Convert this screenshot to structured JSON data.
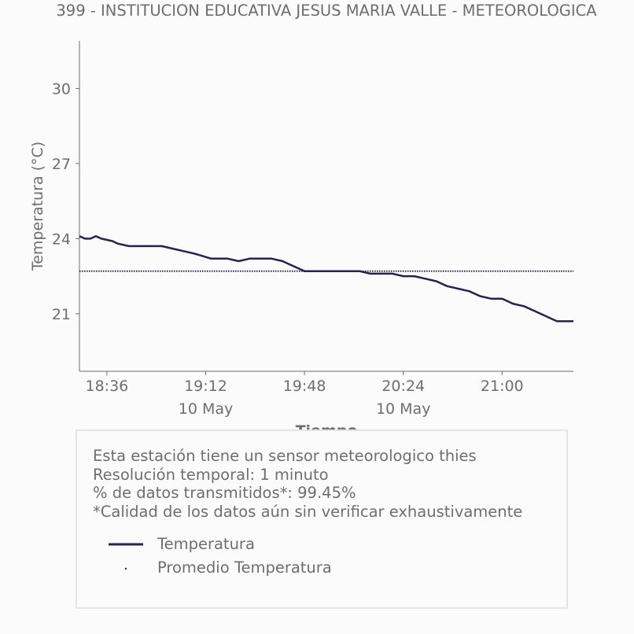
{
  "chart_data": {
    "type": "line",
    "title": "399 - INSTITUCION EDUCATIVA JESUS MARIA VALLE - METEOROLOGICA",
    "xlabel": "Tiempo",
    "ylabel": "Temperatura (°C)",
    "x_ticks": [
      "18:36",
      "19:12",
      "19:48",
      "20:24",
      "21:00"
    ],
    "x_date_labels": [
      "10 May",
      "10 May"
    ],
    "y_ticks": [
      21,
      24,
      27,
      30
    ],
    "ylim": [
      18.7,
      31.9
    ],
    "xlim": [
      "2023-05-10 18:26",
      "2023-05-10 21:26"
    ],
    "series": [
      {
        "name": "Temperatura",
        "color": "#23254a",
        "style": "solid",
        "x": [
          "18:26",
          "18:28",
          "18:30",
          "18:32",
          "18:34",
          "18:38",
          "18:40",
          "18:44",
          "18:50",
          "18:56",
          "19:00",
          "19:04",
          "19:08",
          "19:14",
          "19:20",
          "19:24",
          "19:28",
          "19:32",
          "19:36",
          "19:40",
          "19:44",
          "19:48",
          "19:52",
          "19:56",
          "20:00",
          "20:04",
          "20:08",
          "20:12",
          "20:16",
          "20:20",
          "20:24",
          "20:28",
          "20:32",
          "20:36",
          "20:40",
          "20:44",
          "20:48",
          "20:52",
          "20:56",
          "21:00",
          "21:04",
          "21:08",
          "21:12",
          "21:16",
          "21:18",
          "21:20",
          "21:24",
          "21:26"
        ],
        "y": [
          24.1,
          24.0,
          24.0,
          24.1,
          24.0,
          23.9,
          23.8,
          23.7,
          23.7,
          23.7,
          23.6,
          23.5,
          23.4,
          23.2,
          23.2,
          23.1,
          23.2,
          23.2,
          23.2,
          23.1,
          22.9,
          22.7,
          22.7,
          22.7,
          22.7,
          22.7,
          22.7,
          22.6,
          22.6,
          22.6,
          22.5,
          22.5,
          22.4,
          22.3,
          22.1,
          22.0,
          21.9,
          21.7,
          21.6,
          21.6,
          21.4,
          21.3,
          21.1,
          20.9,
          20.8,
          20.7,
          20.7,
          20.7
        ]
      },
      {
        "name": "Promedio Temperatura",
        "color": "#23254a",
        "style": "dotted",
        "x": [
          "18:26",
          "21:26"
        ],
        "y": [
          22.7,
          22.7
        ]
      }
    ],
    "grid": false,
    "legend_position": "bottom (inside info box)"
  },
  "info": {
    "line1": "Esta estación tiene un sensor meteorologico thies",
    "line2": "Resolución temporal: 1 minuto",
    "line3": "% de datos transmitidos*: 99.45%",
    "line4": "*Calidad de los datos aún sin verificar exhaustivamente"
  },
  "legend": {
    "temperature_label": "Temperatura",
    "average_label": "Promedio Temperatura"
  },
  "colors": {
    "line": "#23254a",
    "text": "#6e6e6e",
    "background": "#fbfbfb"
  }
}
